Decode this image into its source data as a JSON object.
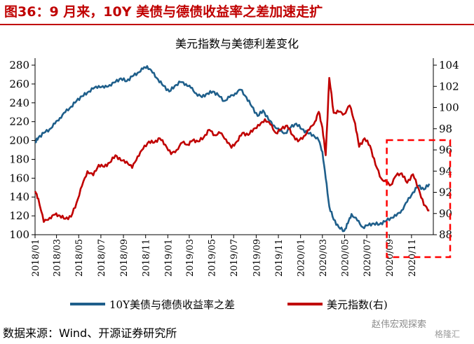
{
  "figure_title": "图36：9 月来，10Y 美债与德债收益率之差加速走扩",
  "source_text": "数据来源：Wind、开源证券研究所",
  "watermark": {
    "text": "赵伟宏观探索",
    "sub": "格隆汇"
  },
  "colors": {
    "left_series": "#1f5f8b",
    "right_series": "#c00000",
    "highlight": "#ff0000"
  },
  "chart_data": {
    "type": "line",
    "title": "美元指数与美德利差变化",
    "x_tick_labels": [
      "2018/01",
      "2018/03",
      "2018/05",
      "2018/07",
      "2018/09",
      "2018/11",
      "2019/01",
      "2019/03",
      "2019/05",
      "2019/07",
      "2019/09",
      "2019/11",
      "2020/01",
      "2020/03",
      "2020/05",
      "2020/07",
      "2020/09",
      "2020/11"
    ],
    "x_range": [
      "2018-01-01",
      "2020-12-31"
    ],
    "y_left": {
      "range": [
        100,
        280
      ],
      "ticks": [
        100,
        120,
        140,
        160,
        180,
        200,
        220,
        240,
        260,
        280
      ]
    },
    "y_right": {
      "range": [
        88,
        104
      ],
      "ticks": [
        88,
        90,
        92,
        94,
        96,
        98,
        100,
        102,
        104
      ]
    },
    "legend_position": "bottom",
    "series": [
      {
        "name": "10Y美债与德债收益率之差",
        "axis": "left",
        "points": [
          [
            "2018-01-01",
            198
          ],
          [
            "2018-01-10",
            203
          ],
          [
            "2018-01-25",
            208
          ],
          [
            "2018-02-10",
            212
          ],
          [
            "2018-02-25",
            218
          ],
          [
            "2018-03-10",
            224
          ],
          [
            "2018-03-25",
            230
          ],
          [
            "2018-04-10",
            236
          ],
          [
            "2018-04-25",
            242
          ],
          [
            "2018-05-10",
            247
          ],
          [
            "2018-05-25",
            251
          ],
          [
            "2018-06-10",
            255
          ],
          [
            "2018-06-25",
            258
          ],
          [
            "2018-07-10",
            256
          ],
          [
            "2018-07-25",
            259
          ],
          [
            "2018-08-10",
            262
          ],
          [
            "2018-08-25",
            266
          ],
          [
            "2018-09-10",
            263
          ],
          [
            "2018-09-25",
            268
          ],
          [
            "2018-10-10",
            272
          ],
          [
            "2018-10-25",
            276
          ],
          [
            "2018-11-05",
            279
          ],
          [
            "2018-11-20",
            272
          ],
          [
            "2018-12-05",
            265
          ],
          [
            "2018-12-20",
            258
          ],
          [
            "2019-01-05",
            252
          ],
          [
            "2019-01-20",
            258
          ],
          [
            "2019-02-05",
            262
          ],
          [
            "2019-02-20",
            260
          ],
          [
            "2019-03-05",
            256
          ],
          [
            "2019-03-20",
            250
          ],
          [
            "2019-04-05",
            246
          ],
          [
            "2019-04-20",
            250
          ],
          [
            "2019-05-05",
            252
          ],
          [
            "2019-05-20",
            248
          ],
          [
            "2019-06-05",
            242
          ],
          [
            "2019-06-20",
            246
          ],
          [
            "2019-07-05",
            250
          ],
          [
            "2019-07-20",
            254
          ],
          [
            "2019-08-05",
            246
          ],
          [
            "2019-08-20",
            236
          ],
          [
            "2019-09-05",
            226
          ],
          [
            "2019-09-20",
            232
          ],
          [
            "2019-10-05",
            222
          ],
          [
            "2019-10-20",
            216
          ],
          [
            "2019-11-05",
            210
          ],
          [
            "2019-11-20",
            208
          ],
          [
            "2019-12-05",
            214
          ],
          [
            "2019-12-20",
            218
          ],
          [
            "2020-01-05",
            212
          ],
          [
            "2020-01-20",
            208
          ],
          [
            "2020-02-05",
            206
          ],
          [
            "2020-02-20",
            200
          ],
          [
            "2020-03-01",
            188
          ],
          [
            "2020-03-10",
            160
          ],
          [
            "2020-03-20",
            130
          ],
          [
            "2020-04-01",
            116
          ],
          [
            "2020-04-15",
            108
          ],
          [
            "2020-04-30",
            104
          ],
          [
            "2020-05-10",
            112
          ],
          [
            "2020-05-20",
            122
          ],
          [
            "2020-06-05",
            115
          ],
          [
            "2020-06-20",
            108
          ],
          [
            "2020-07-05",
            110
          ],
          [
            "2020-07-20",
            112
          ],
          [
            "2020-08-05",
            111
          ],
          [
            "2020-08-20",
            114
          ],
          [
            "2020-09-05",
            118
          ],
          [
            "2020-09-20",
            120
          ],
          [
            "2020-10-05",
            126
          ],
          [
            "2020-10-20",
            135
          ],
          [
            "2020-11-05",
            145
          ],
          [
            "2020-11-20",
            152
          ],
          [
            "2020-12-05",
            148
          ],
          [
            "2020-12-20",
            154
          ]
        ]
      },
      {
        "name": "美元指数(右)",
        "axis": "right",
        "points": [
          [
            "2018-01-01",
            92.1
          ],
          [
            "2018-01-10",
            91.4
          ],
          [
            "2018-01-25",
            89.2
          ],
          [
            "2018-02-10",
            89.6
          ],
          [
            "2018-02-25",
            89.9
          ],
          [
            "2018-03-10",
            89.8
          ],
          [
            "2018-03-25",
            89.5
          ],
          [
            "2018-04-10",
            89.7
          ],
          [
            "2018-04-25",
            91.0
          ],
          [
            "2018-05-10",
            92.6
          ],
          [
            "2018-05-25",
            94.0
          ],
          [
            "2018-06-10",
            93.6
          ],
          [
            "2018-06-25",
            94.6
          ],
          [
            "2018-07-10",
            94.4
          ],
          [
            "2018-07-25",
            94.8
          ],
          [
            "2018-08-10",
            95.5
          ],
          [
            "2018-08-25",
            95.0
          ],
          [
            "2018-09-10",
            94.9
          ],
          [
            "2018-09-25",
            94.3
          ],
          [
            "2018-10-10",
            95.4
          ],
          [
            "2018-10-25",
            96.1
          ],
          [
            "2018-11-10",
            96.8
          ],
          [
            "2018-11-25",
            96.7
          ],
          [
            "2018-12-10",
            97.1
          ],
          [
            "2018-12-25",
            96.5
          ],
          [
            "2019-01-10",
            95.6
          ],
          [
            "2019-01-25",
            96.0
          ],
          [
            "2019-02-10",
            96.7
          ],
          [
            "2019-02-25",
            96.5
          ],
          [
            "2019-03-10",
            96.9
          ],
          [
            "2019-03-25",
            96.8
          ],
          [
            "2019-04-10",
            97.2
          ],
          [
            "2019-04-25",
            97.9
          ],
          [
            "2019-05-10",
            97.4
          ],
          [
            "2019-05-25",
            97.6
          ],
          [
            "2019-06-10",
            97.0
          ],
          [
            "2019-06-25",
            96.2
          ],
          [
            "2019-07-10",
            96.8
          ],
          [
            "2019-07-25",
            97.6
          ],
          [
            "2019-08-10",
            97.4
          ],
          [
            "2019-08-25",
            98.0
          ],
          [
            "2019-09-10",
            98.3
          ],
          [
            "2019-09-25",
            98.9
          ],
          [
            "2019-10-10",
            98.4
          ],
          [
            "2019-10-25",
            97.6
          ],
          [
            "2019-11-10",
            98.0
          ],
          [
            "2019-11-25",
            98.3
          ],
          [
            "2019-12-10",
            97.4
          ],
          [
            "2019-12-25",
            96.8
          ],
          [
            "2020-01-10",
            97.3
          ],
          [
            "2020-01-25",
            97.9
          ],
          [
            "2020-02-10",
            98.7
          ],
          [
            "2020-02-20",
            99.6
          ],
          [
            "2020-03-01",
            98.1
          ],
          [
            "2020-03-10",
            95.5
          ],
          [
            "2020-03-20",
            102.8
          ],
          [
            "2020-04-01",
            99.5
          ],
          [
            "2020-04-15",
            99.6
          ],
          [
            "2020-04-30",
            99.4
          ],
          [
            "2020-05-15",
            100.2
          ],
          [
            "2020-05-30",
            98.5
          ],
          [
            "2020-06-10",
            96.3
          ],
          [
            "2020-06-25",
            97.1
          ],
          [
            "2020-07-10",
            96.4
          ],
          [
            "2020-07-25",
            94.6
          ],
          [
            "2020-08-10",
            93.3
          ],
          [
            "2020-08-25",
            92.9
          ],
          [
            "2020-09-05",
            92.7
          ],
          [
            "2020-09-20",
            93.6
          ],
          [
            "2020-10-05",
            93.8
          ],
          [
            "2020-10-20",
            92.9
          ],
          [
            "2020-11-05",
            93.7
          ],
          [
            "2020-11-20",
            92.4
          ],
          [
            "2020-12-05",
            90.8
          ],
          [
            "2020-12-20",
            90.3
          ]
        ]
      }
    ]
  }
}
